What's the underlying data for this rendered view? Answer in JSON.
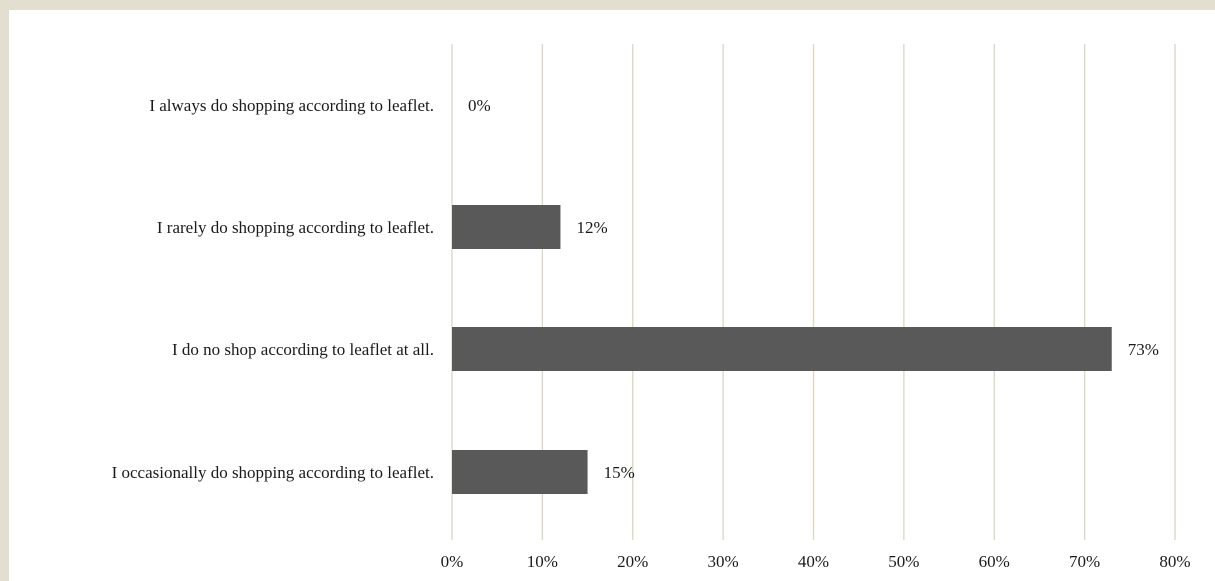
{
  "chart_data": {
    "type": "bar",
    "orientation": "horizontal",
    "categories": [
      "I always do shopping according to leaflet.",
      "I rarely do shopping according to leaflet.",
      "I do no shop according to leaflet at all.",
      "I occasionally do shopping according to leaflet."
    ],
    "values": [
      0,
      12,
      73,
      15
    ],
    "value_labels": [
      "0%",
      "12%",
      "73%",
      "15%"
    ],
    "xlim": [
      0,
      80
    ],
    "xticks": [
      0,
      10,
      20,
      30,
      40,
      50,
      60,
      70,
      80
    ],
    "xtick_labels": [
      "0%",
      "10%",
      "20%",
      "30%",
      "40%",
      "50%",
      "60%",
      "70%",
      "80%"
    ],
    "grid": true,
    "legend": "none",
    "colors": {
      "bar": "#595959",
      "grid": "#d9d6c3",
      "frame": "#e2dfd1"
    }
  }
}
